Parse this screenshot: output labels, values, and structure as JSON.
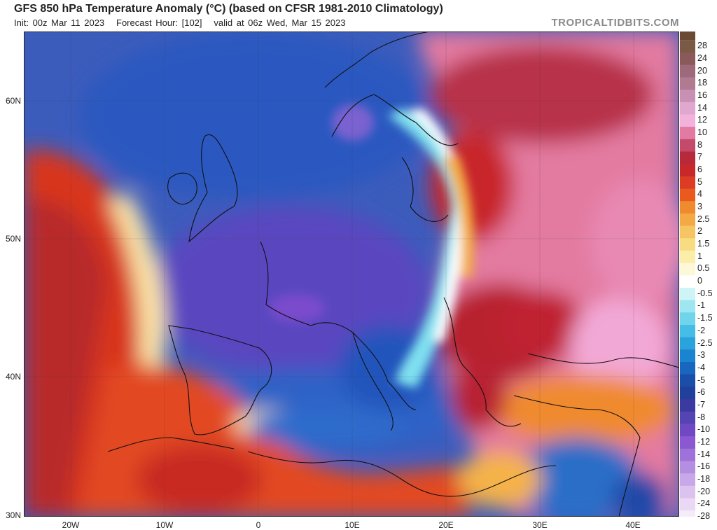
{
  "header": {
    "title": "GFS 850 hPa Temperature Anomaly (°C) (based on CFSR 1981-2010 Climatology)",
    "init": "Init: 00z Mar 11 2023",
    "forecast_hour": "Forecast Hour: [102]",
    "valid": "valid at 06z Wed, Mar 15 2023",
    "brand": "TROPICALTIDBITS.COM"
  },
  "axes": {
    "lat_labels": [
      "60N",
      "50N",
      "40N",
      "30N"
    ],
    "lon_labels": [
      "20W",
      "10W",
      "0",
      "10E",
      "20E",
      "30E",
      "40E"
    ]
  },
  "colorbar": {
    "labels": [
      "28",
      "24",
      "20",
      "18",
      "16",
      "14",
      "12",
      "10",
      "8",
      "7",
      "6",
      "5",
      "4",
      "3",
      "2.5",
      "2",
      "1.5",
      "1",
      "0.5",
      "0",
      "-0.5",
      "-1",
      "-1.5",
      "-2",
      "-2.5",
      "-3",
      "-4",
      "-5",
      "-6",
      "-7",
      "-8",
      "-10",
      "-12",
      "-14",
      "-16",
      "-18",
      "-20",
      "-24",
      "-28"
    ],
    "colors": [
      "#7a5a44",
      "#8a5a5a",
      "#9c6a7a",
      "#b07a90",
      "#c990b4",
      "#e0a8cf",
      "#f2b2dc",
      "#e27aa2",
      "#c34a6a",
      "#b82a3a",
      "#c8282a",
      "#dc3b24",
      "#ea5a1f",
      "#f08a2e",
      "#f3aa45",
      "#f6c462",
      "#f8dc82",
      "#faeea8",
      "#fcf8d8",
      "#ffffff",
      "#cff4f6",
      "#9ee6f0",
      "#70d4ea",
      "#46bde6",
      "#2aa2dc",
      "#1a84d0",
      "#1866c0",
      "#1a4ea8",
      "#20409c",
      "#3a3aa0",
      "#5544b4",
      "#7048c4",
      "#8a58d0",
      "#9e72d8",
      "#b48ee0",
      "#c8a8e8",
      "#dcc2ee",
      "#ead8f4",
      "#f4ecf8"
    ]
  }
}
